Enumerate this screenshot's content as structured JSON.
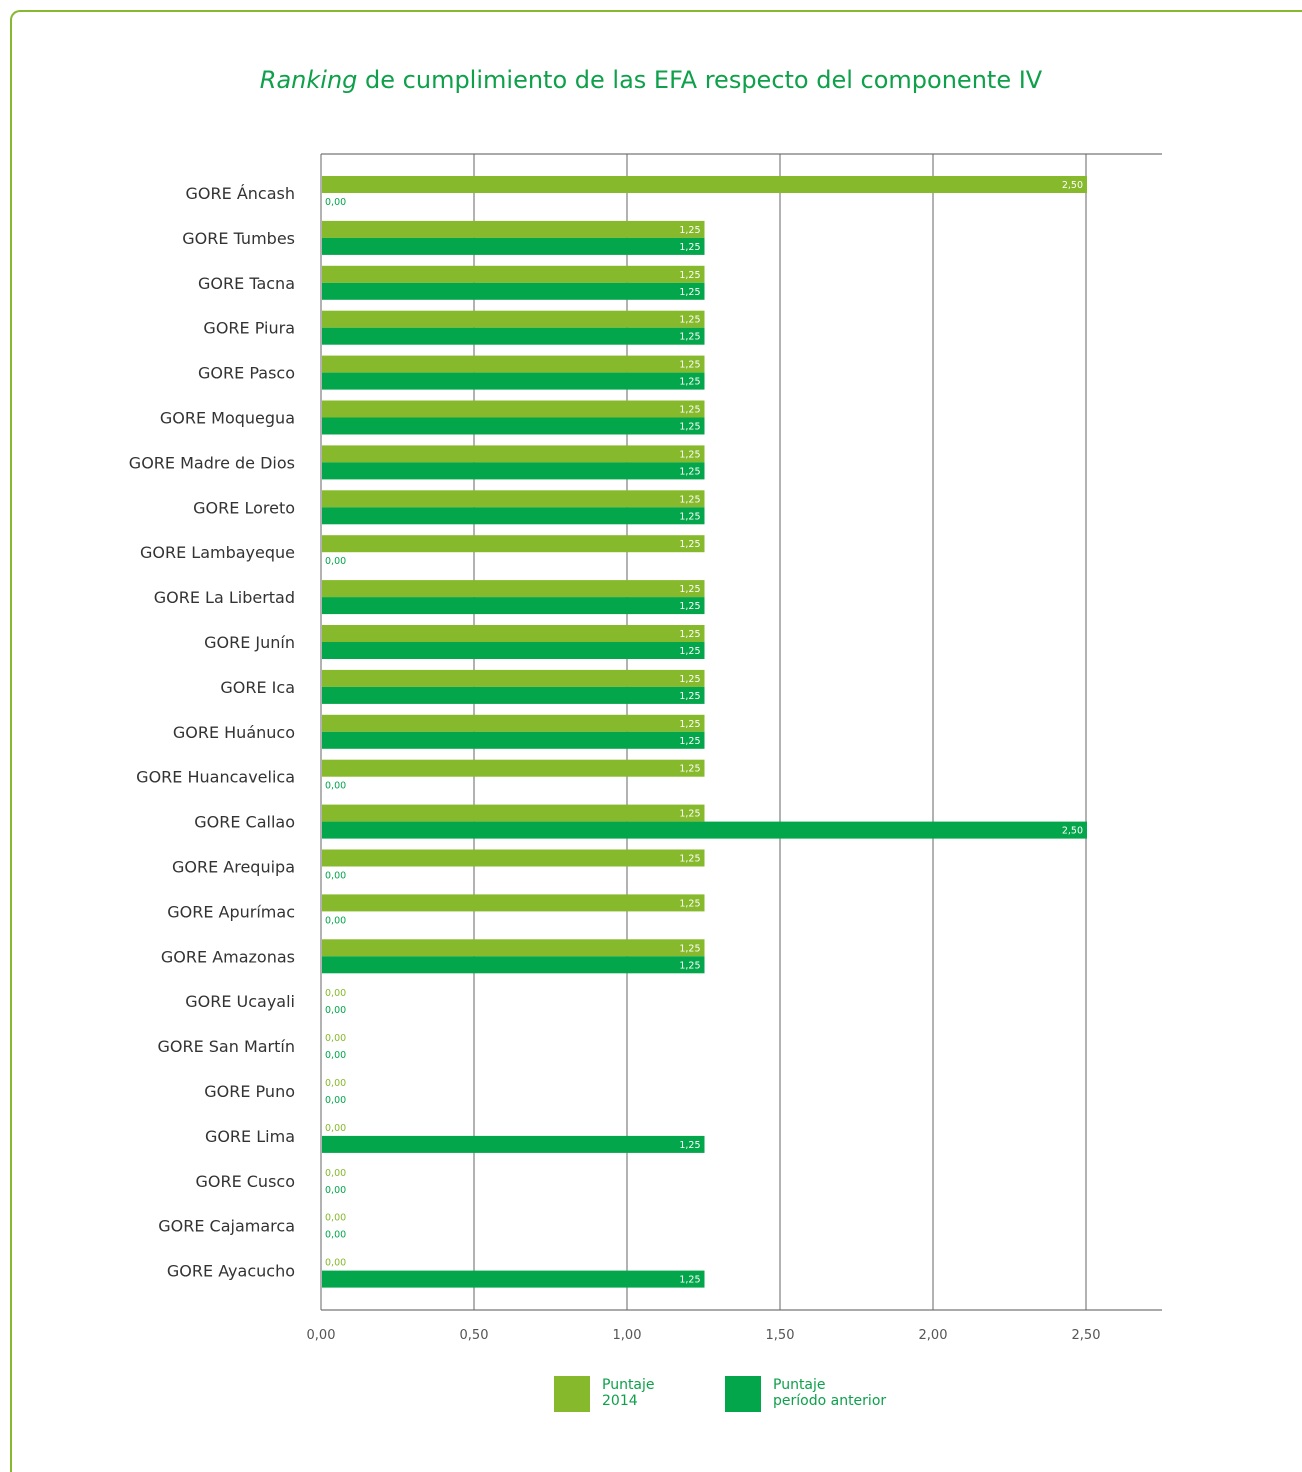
{
  "colors": {
    "series1": "#86b92b",
    "series2": "#04a64b",
    "frame": "#86b830",
    "title": "#0ea04a"
  },
  "title": {
    "italic": "Ranking",
    "rest": " de cumplimiento de las EFA respecto del componente IV"
  },
  "legend": [
    {
      "line1": "Puntaje",
      "line2": "2014"
    },
    {
      "line1": "Puntaje",
      "line2": "período anterior"
    }
  ],
  "chart_data": {
    "type": "bar",
    "orientation": "horizontal",
    "title": "Ranking de cumplimiento de las EFA respecto del componente IV",
    "categories": [
      "GORE Áncash",
      "GORE Tumbes",
      "GORE Tacna",
      "GORE Piura",
      "GORE Pasco",
      "GORE Moquegua",
      "GORE Madre de Dios",
      "GORE Loreto",
      "GORE Lambayeque",
      "GORE La Libertad",
      "GORE Junín",
      "GORE Ica",
      "GORE Huánuco",
      "GORE Huancavelica",
      "GORE Callao",
      "GORE Arequipa",
      "GORE Apurímac",
      "GORE Amazonas",
      "GORE Ucayali",
      "GORE San Martín",
      "GORE Puno",
      "GORE Lima",
      "GORE Cusco",
      "GORE Cajamarca",
      "GORE Ayacucho"
    ],
    "series": [
      {
        "name": "Puntaje 2014",
        "values": [
          2.5,
          1.25,
          1.25,
          1.25,
          1.25,
          1.25,
          1.25,
          1.25,
          1.25,
          1.25,
          1.25,
          1.25,
          1.25,
          1.25,
          1.25,
          1.25,
          1.25,
          1.25,
          0,
          0,
          0,
          0,
          0,
          0,
          0
        ]
      },
      {
        "name": "Puntaje período anterior",
        "values": [
          0,
          1.25,
          1.25,
          1.25,
          1.25,
          1.25,
          1.25,
          1.25,
          0,
          1.25,
          1.25,
          1.25,
          1.25,
          0,
          2.5,
          0,
          0,
          1.25,
          0,
          0,
          0,
          1.25,
          0,
          0,
          1.25
        ]
      }
    ],
    "value_labels": [
      "0,00",
      "1,25",
      "2,50"
    ],
    "xticks": [
      {
        "value": 0,
        "label": "0,00"
      },
      {
        "value": 0.5,
        "label": "0,50"
      },
      {
        "value": 1,
        "label": "1,00"
      },
      {
        "value": 1.5,
        "label": "1,50"
      },
      {
        "value": 2,
        "label": "2,00"
      },
      {
        "value": 2.5,
        "label": "2,50"
      }
    ],
    "xlim": [
      0,
      2.75
    ],
    "xlabel": "",
    "ylabel": "",
    "grid": true,
    "legend_position": "bottom"
  }
}
